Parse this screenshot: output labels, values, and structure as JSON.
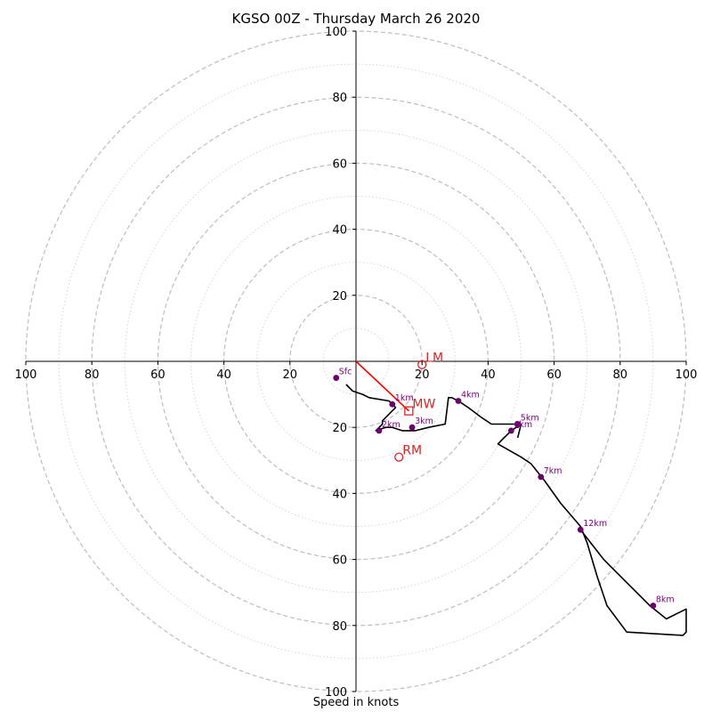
{
  "chart_data": {
    "type": "line",
    "title": "KGSO 00Z - Thursday March 26 2020",
    "xlabel": "Speed in knots",
    "ylabel": "",
    "xlim": [
      -100,
      100
    ],
    "ylim": [
      -100,
      100
    ],
    "tick_labels": {
      "left": [
        "100",
        "80",
        "60",
        "40",
        "20"
      ],
      "right": [
        "20",
        "40",
        "60",
        "80",
        "100"
      ],
      "top": [
        "100",
        "80",
        "60",
        "40",
        "20"
      ],
      "bottom": [
        "20",
        "40",
        "60",
        "80",
        "100"
      ]
    },
    "rings": {
      "major": [
        20,
        40,
        60,
        80,
        100
      ],
      "minor": [
        10,
        30,
        50,
        70,
        90
      ]
    },
    "series": [
      {
        "values": [
          [
            -3,
            -7
          ],
          [
            -1,
            -9
          ],
          [
            2,
            -10
          ],
          [
            4,
            -11
          ],
          [
            10,
            -12
          ],
          [
            11,
            -13
          ],
          [
            12,
            -14
          ],
          [
            11,
            -15
          ],
          [
            9,
            -17
          ],
          [
            8,
            -18
          ],
          [
            8,
            -19
          ],
          [
            7,
            -20
          ],
          [
            6,
            -21
          ],
          [
            9,
            -20
          ],
          [
            11,
            -20
          ],
          [
            14,
            -21
          ],
          [
            18,
            -21
          ],
          [
            22,
            -20
          ],
          [
            27,
            -19
          ],
          [
            28,
            -11
          ],
          [
            29,
            -11
          ],
          [
            31,
            -12
          ],
          [
            34,
            -14
          ],
          [
            38,
            -17
          ],
          [
            41,
            -19
          ],
          [
            46,
            -19
          ],
          [
            50,
            -19
          ],
          [
            49,
            -20
          ],
          [
            50,
            -19
          ],
          [
            49,
            -23
          ],
          [
            50,
            -19
          ],
          [
            47,
            -21
          ],
          [
            44,
            -24
          ],
          [
            43,
            -25
          ],
          [
            50,
            -29
          ],
          [
            53,
            -31
          ],
          [
            57,
            -36
          ],
          [
            62,
            -43
          ],
          [
            68,
            -50
          ],
          [
            70,
            -55
          ],
          [
            73,
            -65
          ],
          [
            76,
            -74
          ],
          [
            82,
            -82
          ],
          [
            99,
            -83
          ],
          [
            100,
            -82
          ],
          [
            100,
            -75
          ],
          [
            94,
            -78
          ],
          [
            89,
            -74
          ],
          [
            82,
            -67
          ],
          [
            75,
            -60
          ],
          [
            68,
            -51
          ]
        ]
      }
    ],
    "height_markers": [
      {
        "label": "Sfc",
        "x": -6,
        "y": -5
      },
      {
        "label": "1km",
        "x": 11,
        "y": -13
      },
      {
        "label": "2km",
        "x": 7,
        "y": -21
      },
      {
        "label": "3km",
        "x": 17,
        "y": -20
      },
      {
        "label": "4km",
        "x": 31,
        "y": -12
      },
      {
        "label": "5km",
        "x": 49,
        "y": -19
      },
      {
        "label": "6km",
        "x": 47,
        "y": -21
      },
      {
        "label": "7km",
        "x": 56,
        "y": -35
      },
      {
        "label": "8km",
        "x": 90,
        "y": -74
      },
      {
        "label": "12km",
        "x": 68,
        "y": -51
      }
    ],
    "storm_motion": {
      "LM": {
        "label": "LM",
        "x": 20,
        "y": -1
      },
      "MW": {
        "label": "MW",
        "x": 16,
        "y": -15
      },
      "RM": {
        "label": "RM",
        "x": 13,
        "y": -29
      }
    },
    "colors": {
      "hodograph": "#000000",
      "markers": "#6a006a",
      "marker_labels": "#800080",
      "storm_motion": "#d62728",
      "motion_vector": "#ff0000",
      "rings": "#bdbdbd",
      "axes": "#000000"
    },
    "grid": true
  }
}
